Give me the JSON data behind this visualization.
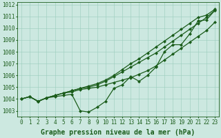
{
  "xlabel": "Graphe pression niveau de la mer (hPa)",
  "bg_color": "#cce8e0",
  "grid_color": "#99ccbb",
  "line_color": "#1a5c1a",
  "x": [
    0,
    1,
    2,
    3,
    4,
    5,
    6,
    7,
    8,
    9,
    10,
    11,
    12,
    13,
    14,
    15,
    16,
    17,
    18,
    19,
    20,
    21,
    22,
    23
  ],
  "series": [
    [
      1004.0,
      1004.2,
      1003.8,
      1004.1,
      1004.2,
      1004.3,
      1004.4,
      1003.0,
      1002.9,
      1003.3,
      1003.8,
      1004.9,
      1005.2,
      1005.9,
      1005.5,
      1006.0,
      1006.7,
      1008.0,
      1008.6,
      1008.6,
      1009.5,
      1010.6,
      1010.7,
      1011.5
    ],
    [
      1004.0,
      1004.2,
      1003.8,
      1004.1,
      1004.3,
      1004.5,
      1004.6,
      1004.8,
      1004.9,
      1005.0,
      1005.2,
      1005.4,
      1005.6,
      1005.8,
      1006.1,
      1006.4,
      1006.8,
      1007.3,
      1007.8,
      1008.3,
      1008.8,
      1009.3,
      1009.8,
      1010.5
    ],
    [
      1004.0,
      1004.2,
      1003.8,
      1004.1,
      1004.3,
      1004.5,
      1004.7,
      1004.9,
      1005.0,
      1005.2,
      1005.5,
      1005.9,
      1006.3,
      1006.7,
      1007.1,
      1007.5,
      1007.9,
      1008.4,
      1008.9,
      1009.4,
      1009.9,
      1010.4,
      1010.9,
      1011.5
    ],
    [
      1004.0,
      1004.2,
      1003.8,
      1004.1,
      1004.3,
      1004.5,
      1004.7,
      1004.9,
      1005.1,
      1005.3,
      1005.6,
      1006.0,
      1006.5,
      1007.0,
      1007.4,
      1007.9,
      1008.4,
      1008.9,
      1009.4,
      1009.9,
      1010.4,
      1010.9,
      1011.1,
      1011.6
    ]
  ],
  "ylim": [
    1002.5,
    1012.2
  ],
  "yticks": [
    1003,
    1004,
    1005,
    1006,
    1007,
    1008,
    1009,
    1010,
    1011,
    1012
  ],
  "marker": "D",
  "marker_size": 2.0,
  "line_width": 0.9,
  "tick_fontsize": 5.5,
  "xlabel_fontsize": 7.0,
  "figsize": [
    3.2,
    2.0
  ],
  "dpi": 100
}
